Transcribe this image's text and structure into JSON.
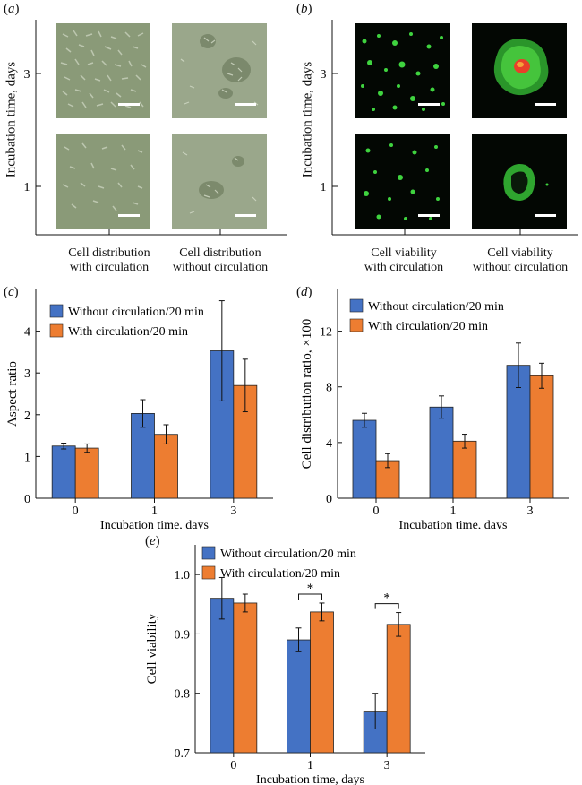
{
  "figure": {
    "panel_a": {
      "label": "a",
      "ylabel": "Incubation time, days",
      "row_labels": [
        "3",
        "1"
      ],
      "captions": [
        "Cell distribution\nwith circulation",
        "Cell distribution\nwithout circulation"
      ]
    },
    "panel_b": {
      "label": "b",
      "ylabel": "Incubation time, days",
      "row_labels": [
        "3",
        "1"
      ],
      "captions": [
        "Cell viability\nwith circulation",
        "Cell viability\nwithout circulation"
      ]
    }
  },
  "colors": {
    "blue": "#4472c4",
    "orange": "#ed7d31",
    "green": "#3fd33f",
    "red": "#e8402a"
  },
  "chart_data": [
    {
      "id": "c",
      "label": "c",
      "type": "bar",
      "categories": [
        "0",
        "1",
        "3"
      ],
      "series": [
        {
          "name": "Without circulation/20 min",
          "values": [
            1.25,
            2.03,
            3.53
          ],
          "errors": [
            0.07,
            0.33,
            1.2
          ]
        },
        {
          "name": "With circulation/20 min",
          "values": [
            1.2,
            1.53,
            2.7
          ],
          "errors": [
            0.1,
            0.23,
            0.63
          ]
        }
      ],
      "xlabel": "Incubation time, days",
      "ylabel": "Aspect ratio",
      "ylim": [
        0,
        5
      ],
      "yticks": [
        0,
        1,
        2,
        3,
        4
      ],
      "legend": "top-left",
      "grid": false
    },
    {
      "id": "d",
      "label": "d",
      "type": "bar",
      "categories": [
        "0",
        "1",
        "3"
      ],
      "series": [
        {
          "name": "Without circulation/20 min",
          "values": [
            5.6,
            6.55,
            9.55
          ],
          "errors": [
            0.5,
            0.8,
            1.6
          ]
        },
        {
          "name": "With circulation/20 min",
          "values": [
            2.7,
            4.1,
            8.8
          ],
          "errors": [
            0.5,
            0.5,
            0.9
          ]
        }
      ],
      "xlabel": "Incubation time, days",
      "ylabel": "Cell distribution ratio, ×100",
      "ylim": [
        0,
        15
      ],
      "yticks": [
        0,
        4,
        8,
        12
      ],
      "legend": "top-left",
      "grid": false
    },
    {
      "id": "e",
      "label": "e",
      "type": "bar",
      "categories": [
        "0",
        "1",
        "3"
      ],
      "series": [
        {
          "name": "Without circulation/20 min",
          "values": [
            0.96,
            0.89,
            0.77
          ],
          "errors": [
            0.035,
            0.02,
            0.03
          ]
        },
        {
          "name": "With circulation/20 min",
          "values": [
            0.952,
            0.937,
            0.916
          ],
          "errors": [
            0.015,
            0.015,
            0.02
          ]
        }
      ],
      "xlabel": "Incubation time, days",
      "ylabel": "Cell viability",
      "ylim": [
        0.7,
        1.05
      ],
      "yticks": [
        0.7,
        0.8,
        0.9,
        1.0
      ],
      "ytick_labels": [
        "0.7",
        "0.8",
        "0.9",
        "1.0"
      ],
      "significance": [
        {
          "category": "1",
          "text": "*"
        },
        {
          "category": "3",
          "text": "*"
        }
      ],
      "legend": "top-left",
      "grid": false
    }
  ]
}
